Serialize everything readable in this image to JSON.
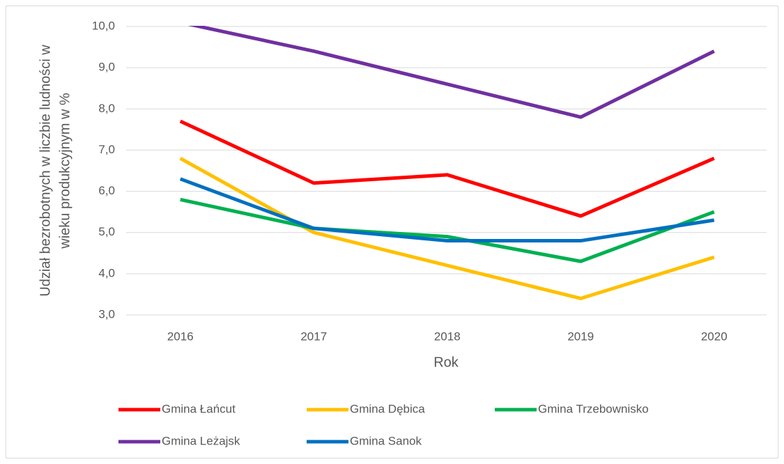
{
  "chart_data": {
    "type": "line",
    "xlabel": "Rok",
    "ylabel": [
      "Udział bezrobotnych w liczbie ludności w",
      "wieku produkcyjnym w %"
    ],
    "categories": [
      "2016",
      "2017",
      "2018",
      "2019",
      "2020"
    ],
    "series": [
      {
        "name": "Gmina Łańcut",
        "color": "#ff0000",
        "values": [
          7.7,
          6.2,
          6.4,
          5.4,
          6.8
        ]
      },
      {
        "name": "Gmina Dębica",
        "color": "#ffc000",
        "values": [
          6.8,
          5.0,
          4.2,
          3.4,
          4.4
        ]
      },
      {
        "name": "Gmina Trzebownisko",
        "color": "#00b050",
        "values": [
          5.8,
          5.1,
          4.9,
          4.3,
          5.5
        ]
      },
      {
        "name": "Gmina Leżajsk",
        "color": "#7030a0",
        "values": [
          10.1,
          9.4,
          8.6,
          7.8,
          9.4
        ]
      },
      {
        "name": "Gmina Sanok",
        "color": "#0070c0",
        "values": [
          6.3,
          5.1,
          4.8,
          4.8,
          5.3
        ]
      }
    ],
    "ylim": [
      3,
      10
    ],
    "yticks": [
      {
        "value": 3,
        "label": "3,0"
      },
      {
        "value": 4,
        "label": "4,0"
      },
      {
        "value": 5,
        "label": "5,0"
      },
      {
        "value": 6,
        "label": "6,0"
      },
      {
        "value": 7,
        "label": "7,0"
      },
      {
        "value": 8,
        "label": "8,0"
      },
      {
        "value": 9,
        "label": "9,0"
      },
      {
        "value": 10,
        "label": "10,0"
      }
    ],
    "grid": true,
    "legend": "bottom"
  }
}
